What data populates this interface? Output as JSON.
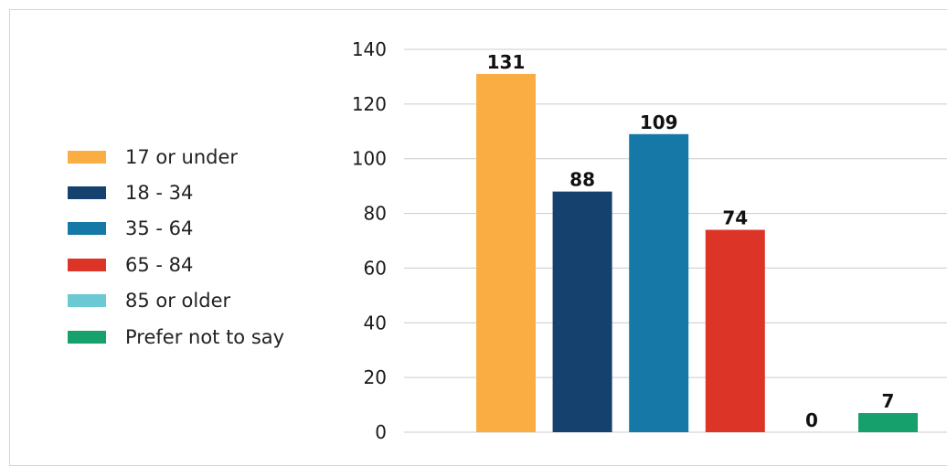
{
  "chart_data": {
    "type": "bar",
    "categories": [
      "17 or under",
      "18 - 34",
      "35 - 64",
      "65 - 84",
      "85 or older",
      "Prefer not to say"
    ],
    "values": [
      131,
      88,
      109,
      74,
      0,
      7
    ],
    "data_labels": [
      "131",
      "88",
      "109",
      "74",
      "0",
      "7"
    ],
    "colors": [
      "#F9AD43",
      "#15416F",
      "#1678A6",
      "#DC3427",
      "#6BC9D3",
      "#16A06B"
    ],
    "ylim": [
      0,
      140
    ],
    "yticks": [
      0,
      20,
      40,
      60,
      80,
      100,
      120,
      140
    ],
    "ytick_labels": [
      "0",
      "20",
      "40",
      "60",
      "80",
      "100",
      "120",
      "140"
    ],
    "grid": true,
    "legend_position": "left"
  }
}
